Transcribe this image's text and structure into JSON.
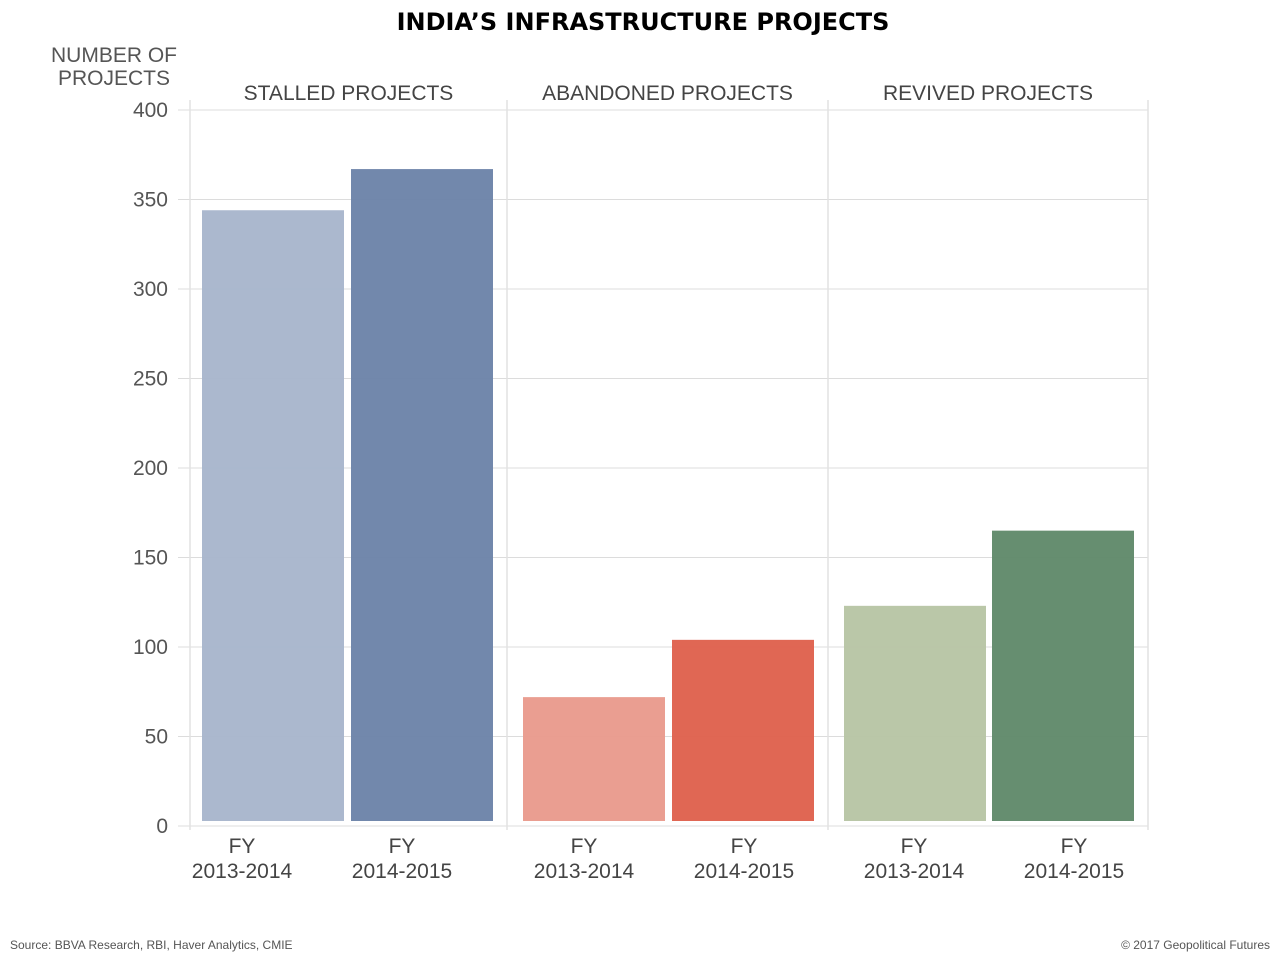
{
  "chart_data": {
    "type": "bar",
    "title": "INDIA’S INFRASTRUCTURE PROJECTS",
    "ylabel": [
      "NUMBER OF",
      "PROJECTS"
    ],
    "ylim": [
      0,
      400
    ],
    "yticks": [
      0,
      50,
      100,
      150,
      200,
      250,
      300,
      350,
      400
    ],
    "grid": true,
    "categories": [
      [
        "FY",
        "2013-2014"
      ],
      [
        "FY",
        "2014-2015"
      ]
    ],
    "panels": [
      {
        "name": "STALLED PROJECTS",
        "values": [
          344,
          367
        ],
        "colors": [
          "#a6b4cb",
          "#6a82a8"
        ]
      },
      {
        "name": "ABANDONED PROJECTS",
        "values": [
          72,
          104
        ],
        "colors": [
          "#e9998b",
          "#de5f4b"
        ]
      },
      {
        "name": "REVIVED PROJECTS",
        "values": [
          123,
          165
        ],
        "colors": [
          "#b6c4a3",
          "#5e8868"
        ]
      }
    ]
  },
  "footer": {
    "source": "Source: BBVA Research, RBI, Haver Analytics, CMIE",
    "copyright": "© 2017 Geopolitical Futures"
  }
}
